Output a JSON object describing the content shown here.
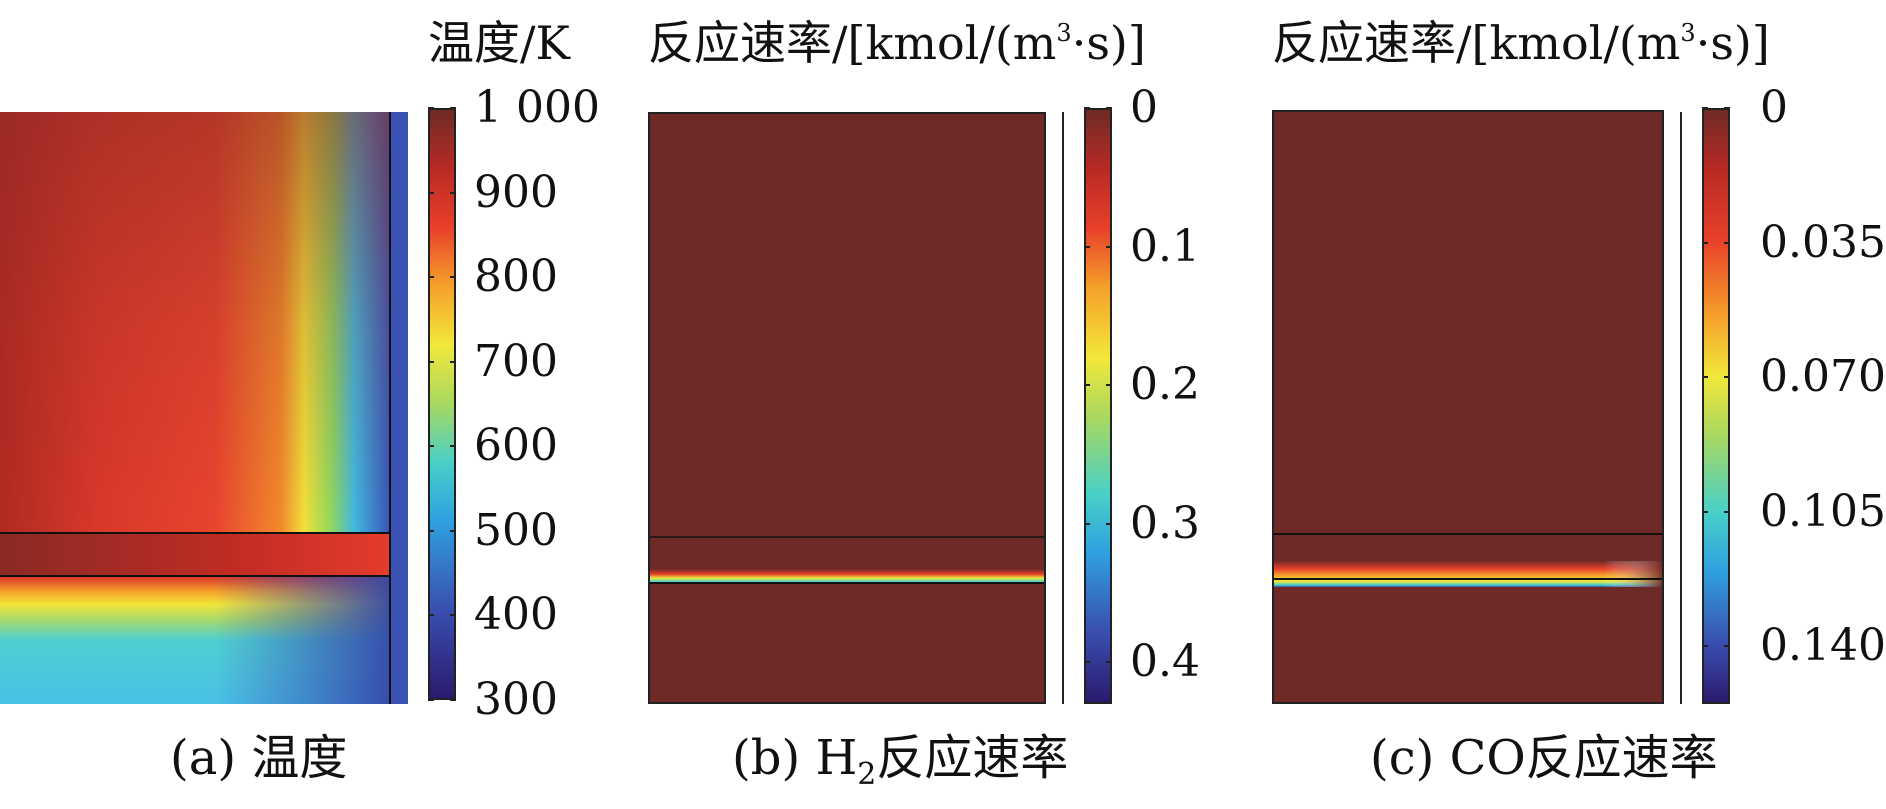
{
  "colormap": [
    "#2a1a6e",
    "#3a4fb0",
    "#2f9fe0",
    "#48d0c8",
    "#a8d860",
    "#f2e83a",
    "#f5a12a",
    "#e8402a",
    "#b82a24",
    "#6e2a26"
  ],
  "panels": [
    {
      "id": "a",
      "colorbar_title": "温度/K",
      "colorbar_ticks": [
        "1 000",
        "900",
        "800",
        "700",
        "600",
        "500",
        "400",
        "300"
      ],
      "caption_prefix": "(a) ",
      "caption_text": "温度"
    },
    {
      "id": "b",
      "colorbar_title_main": "反应速率/[kmol/(m",
      "colorbar_title_sup": "3",
      "colorbar_title_end": "·s)]",
      "colorbar_ticks": [
        "0",
        "0.1",
        "0.2",
        "0.3",
        "0.4"
      ],
      "caption_prefix": "(b) H",
      "caption_sub": "2",
      "caption_text": "反应速率"
    },
    {
      "id": "c",
      "colorbar_title_main": "反应速率/[kmol/(m",
      "colorbar_title_sup": "3",
      "colorbar_title_end": "·s)]",
      "colorbar_ticks": [
        "0",
        "0.035",
        "0.070",
        "0.105",
        "0.140"
      ],
      "caption_prefix": "(c) CO",
      "caption_text": "反应速率"
    }
  ],
  "chart_data": [
    {
      "type": "heatmap",
      "title": "温度/K",
      "colorbar_range": [
        300,
        1000
      ],
      "colorbar_ticks": [
        1000,
        900,
        800,
        700,
        600,
        500,
        400,
        300
      ],
      "caption": "(a) 温度"
    },
    {
      "type": "heatmap",
      "title": "反应速率/[kmol/(m3·s)]",
      "colorbar_range": [
        0,
        0.43
      ],
      "colorbar_ticks": [
        0,
        0.1,
        0.2,
        0.3,
        0.4
      ],
      "colorbar_reversed": true,
      "caption": "(b) H2反应速率"
    },
    {
      "type": "heatmap",
      "title": "反应速率/[kmol/(m3·s)]",
      "colorbar_range": [
        0,
        0.155
      ],
      "colorbar_ticks": [
        0,
        0.035,
        0.07,
        0.105,
        0.14
      ],
      "colorbar_reversed": true,
      "caption": "(c) CO反应速率"
    }
  ]
}
